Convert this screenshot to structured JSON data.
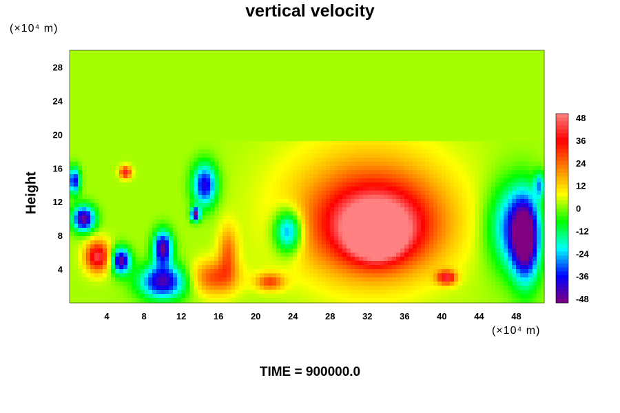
{
  "chart_data": {
    "type": "heatmap",
    "title": "vertical velocity",
    "ylabel": "Height",
    "xunit": "(×10⁴ m)",
    "yunit": "(×10⁴ m)",
    "footer": "TIME = 900000.0",
    "xlim": [
      0,
      51
    ],
    "ylim": [
      0,
      30
    ],
    "xticks": [
      4,
      8,
      12,
      16,
      20,
      24,
      28,
      32,
      36,
      40,
      44,
      48
    ],
    "yticks": [
      4,
      8,
      12,
      16,
      20,
      24,
      28
    ],
    "colorbar": {
      "range": [
        -48,
        48
      ],
      "ticks": [
        48,
        36,
        24,
        12,
        0,
        -12,
        -24,
        -36,
        -48
      ],
      "colors": [
        "#ff8080",
        "#ff0000",
        "#ff8000",
        "#ffff00",
        "#00ff00",
        "#00ffff",
        "#0000ff",
        "#800080"
      ]
    },
    "background_value": 2,
    "quiet_above_height": 19,
    "features": [
      {
        "x": 33,
        "y": 9,
        "rx": 6,
        "ry": 5,
        "value": 38
      },
      {
        "x": 32,
        "y": 11,
        "rx": 9,
        "ry": 8,
        "value": 20
      },
      {
        "x": 33,
        "y": 8,
        "rx": 2.5,
        "ry": 2.5,
        "value": 46
      },
      {
        "x": 40.5,
        "y": 3,
        "rx": 1,
        "ry": 0.8,
        "value": 36
      },
      {
        "x": 3,
        "y": 5.5,
        "rx": 1.3,
        "ry": 1.8,
        "value": 40
      },
      {
        "x": 15.5,
        "y": 3,
        "rx": 2.5,
        "ry": 2,
        "value": 24
      },
      {
        "x": 17,
        "y": 6,
        "rx": 1,
        "ry": 3,
        "value": 20
      },
      {
        "x": 21.5,
        "y": 2.5,
        "rx": 1.5,
        "ry": 1,
        "value": 24
      },
      {
        "x": 6,
        "y": 15.5,
        "rx": 0.6,
        "ry": 0.7,
        "value": 36
      },
      {
        "x": 10,
        "y": 2.5,
        "rx": 2.5,
        "ry": 2,
        "value": -44
      },
      {
        "x": 10,
        "y": 6.5,
        "rx": 1,
        "ry": 2,
        "value": -48
      },
      {
        "x": 5.5,
        "y": 5,
        "rx": 1,
        "ry": 1.5,
        "value": -48
      },
      {
        "x": 1.5,
        "y": 10,
        "rx": 1.2,
        "ry": 1.5,
        "value": -48
      },
      {
        "x": 0.5,
        "y": 14.5,
        "rx": 0.6,
        "ry": 1.5,
        "value": -40
      },
      {
        "x": 14.5,
        "y": 14,
        "rx": 1.3,
        "ry": 2.5,
        "value": -40
      },
      {
        "x": 13.5,
        "y": 10.5,
        "rx": 0.5,
        "ry": 0.8,
        "value": -48
      },
      {
        "x": 23.5,
        "y": 8.5,
        "rx": 1.5,
        "ry": 2.5,
        "value": -36
      },
      {
        "x": 49,
        "y": 7.5,
        "rx": 1.5,
        "ry": 5,
        "value": -48
      },
      {
        "x": 47.5,
        "y": 9,
        "rx": 2.5,
        "ry": 5,
        "value": -30
      },
      {
        "x": 50.5,
        "y": 14,
        "rx": 0.6,
        "ry": 1.5,
        "value": -24
      }
    ]
  }
}
